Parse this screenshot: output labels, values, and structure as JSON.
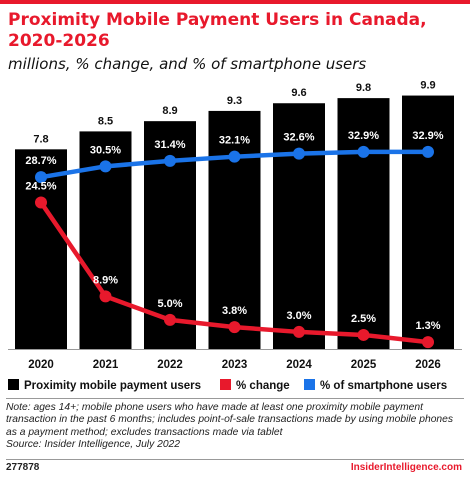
{
  "header": {
    "title": "Proximity Mobile Payment Users in Canada, 2020-2026",
    "subtitle": "millions, % change, and % of smartphone users"
  },
  "chart_data": {
    "type": "bar",
    "categories": [
      "2020",
      "2021",
      "2022",
      "2023",
      "2024",
      "2025",
      "2026"
    ],
    "series": [
      {
        "name": "Proximity mobile payment users",
        "type": "bar",
        "values": [
          7.8,
          8.5,
          8.9,
          9.3,
          9.6,
          9.8,
          9.9
        ],
        "labels": [
          "7.8",
          "8.5",
          "8.9",
          "9.3",
          "9.6",
          "9.8",
          "9.9"
        ],
        "color": "#000000"
      },
      {
        "name": "% change",
        "type": "line",
        "values": [
          24.5,
          8.9,
          5.0,
          3.8,
          3.0,
          2.5,
          1.3
        ],
        "labels": [
          "24.5%",
          "8.9%",
          "5.0%",
          "3.8%",
          "3.0%",
          "2.5%",
          "1.3%"
        ],
        "color": "#e8192c"
      },
      {
        "name": "% of smartphone users",
        "type": "line",
        "values": [
          28.7,
          30.5,
          31.4,
          32.1,
          32.6,
          32.9,
          32.9
        ],
        "labels": [
          "28.7%",
          "30.5%",
          "31.4%",
          "32.1%",
          "32.6%",
          "32.9%",
          "32.9%"
        ],
        "color": "#1a73e8"
      }
    ],
    "legend": "bottom",
    "grid": false
  },
  "footer": {
    "note": "Note: ages 14+; mobile phone users who have made at least one proximity mobile payment transaction in the past 6 months; includes point-of-sale transactions made by using mobile phones as a payment method; excludes transactions made via tablet",
    "source": "Source: Insider Intelligence, July 2022",
    "chart_id": "277878",
    "brand": "InsiderIntelligence.com"
  }
}
